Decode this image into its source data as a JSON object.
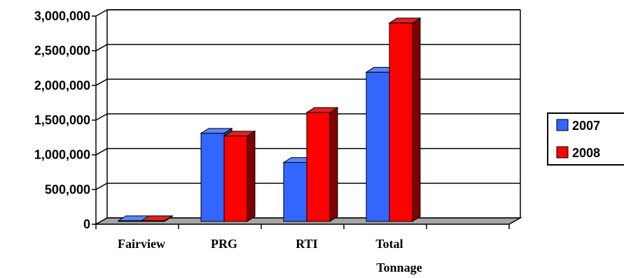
{
  "chart_data": {
    "type": "bar",
    "categories": [
      "Fairview",
      "PRG",
      "RTI",
      "Total Tonnage"
    ],
    "series": [
      {
        "name": "2007",
        "values": [
          0,
          1270000,
          850000,
          2150000
        ],
        "color": "#3366ff",
        "side_color": "#1f3a99",
        "top_color": "#5a85ff"
      },
      {
        "name": "2008",
        "values": [
          0,
          1230000,
          1570000,
          2860000
        ],
        "color": "#ff0000",
        "side_color": "#800000",
        "top_color": "#e02020"
      }
    ],
    "ylim": [
      0,
      3000000
    ],
    "yticks": [
      0,
      500000,
      1000000,
      1500000,
      2000000,
      2500000,
      3000000
    ],
    "ytick_labels": [
      "0",
      "500,000",
      "1,000,000",
      "1,500,000",
      "2,000,000",
      "2,500,000",
      "3,000,000"
    ],
    "xtick_labels": [
      [
        "Fairview"
      ],
      [
        "PRG"
      ],
      [
        "RTI"
      ],
      [
        "Total",
        "Tonnage"
      ]
    ],
    "grid": true,
    "legend_position": "right",
    "floor_color": "#a6a6a6"
  }
}
